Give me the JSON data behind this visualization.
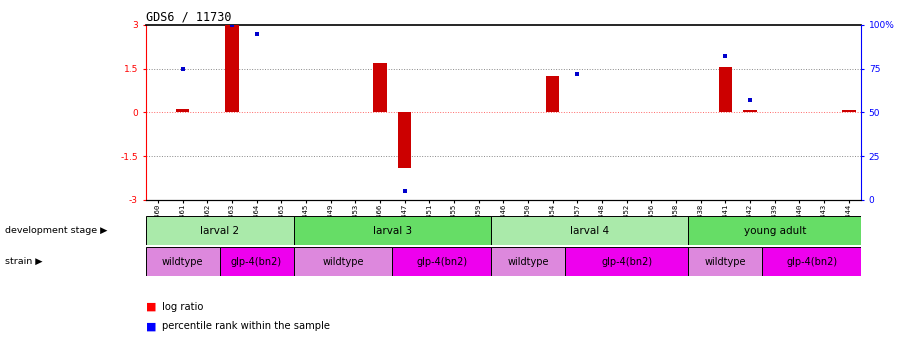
{
  "title": "GDS6 / 11730",
  "samples": [
    "GSM460",
    "GSM461",
    "GSM462",
    "GSM463",
    "GSM464",
    "GSM465",
    "GSM445",
    "GSM449",
    "GSM453",
    "GSM466",
    "GSM447",
    "GSM451",
    "GSM455",
    "GSM459",
    "GSM446",
    "GSM450",
    "GSM454",
    "GSM457",
    "GSM448",
    "GSM452",
    "GSM456",
    "GSM458",
    "GSM438",
    "GSM441",
    "GSM442",
    "GSM439",
    "GSM440",
    "GSM443",
    "GSM444"
  ],
  "log_ratios": [
    0.0,
    0.12,
    0.0,
    3.0,
    0.0,
    0.0,
    0.0,
    0.0,
    0.0,
    1.7,
    -1.9,
    0.0,
    0.0,
    0.0,
    0.0,
    0.0,
    1.25,
    0.0,
    0.0,
    0.0,
    0.0,
    0.0,
    0.0,
    1.55,
    0.07,
    0.0,
    0.0,
    0.0,
    0.1
  ],
  "percentile_right": [
    null,
    75,
    null,
    100,
    95,
    null,
    null,
    null,
    null,
    null,
    5,
    null,
    null,
    null,
    null,
    null,
    null,
    72,
    null,
    null,
    null,
    null,
    null,
    82,
    57,
    null,
    null,
    null,
    null
  ],
  "development_stages": [
    {
      "label": "larval 2",
      "start": 0,
      "end": 6,
      "color": "#aaeaaa"
    },
    {
      "label": "larval 3",
      "start": 6,
      "end": 14,
      "color": "#66dd66"
    },
    {
      "label": "larval 4",
      "start": 14,
      "end": 22,
      "color": "#aaeaaa"
    },
    {
      "label": "young adult",
      "start": 22,
      "end": 29,
      "color": "#66dd66"
    }
  ],
  "strains": [
    {
      "label": "wildtype",
      "start": 0,
      "end": 3,
      "color": "#dd88dd"
    },
    {
      "label": "glp-4(bn2)",
      "start": 3,
      "end": 6,
      "color": "#ee00ee"
    },
    {
      "label": "wildtype",
      "start": 6,
      "end": 10,
      "color": "#dd88dd"
    },
    {
      "label": "glp-4(bn2)",
      "start": 10,
      "end": 14,
      "color": "#ee00ee"
    },
    {
      "label": "wildtype",
      "start": 14,
      "end": 17,
      "color": "#dd88dd"
    },
    {
      "label": "glp-4(bn2)",
      "start": 17,
      "end": 22,
      "color": "#ee00ee"
    },
    {
      "label": "wildtype",
      "start": 22,
      "end": 25,
      "color": "#dd88dd"
    },
    {
      "label": "glp-4(bn2)",
      "start": 25,
      "end": 29,
      "color": "#ee00ee"
    }
  ],
  "bar_color": "#cc0000",
  "percentile_color": "#0000cc",
  "zero_line_color": "#ff6666",
  "dotted_line_color": "#888888"
}
